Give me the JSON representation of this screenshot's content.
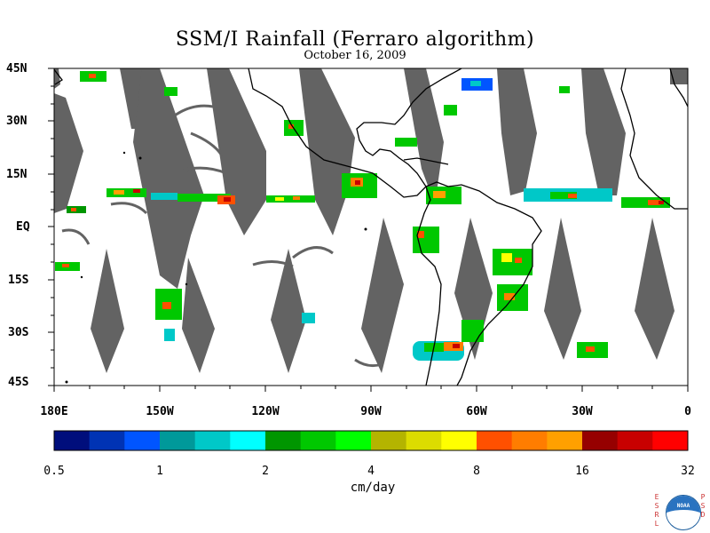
{
  "title": "SSM/I Rainfall (Ferraro algorithm)",
  "date": "October 16, 2009",
  "lat_labels": [
    "45N",
    "30N",
    "15N",
    "EQ",
    "15S",
    "30S",
    "45S"
  ],
  "lon_labels": [
    "180E",
    "150W",
    "120W",
    "90W",
    "60W",
    "30W",
    "0"
  ],
  "colorbar": {
    "units": "cm/day",
    "tick_labels": [
      "0.5",
      "1",
      "2",
      "4",
      "8",
      "16",
      "32"
    ],
    "colors": [
      "#000e7c",
      "#0033b4",
      "#0055ff",
      "#00999a",
      "#00c8c8",
      "#00ffff",
      "#009600",
      "#00c800",
      "#00ff00",
      "#b4b400",
      "#dcdc00",
      "#ffff00",
      "#ff5000",
      "#ff7d00",
      "#ffa000",
      "#960000",
      "#c80000",
      "#ff0000"
    ]
  },
  "map_colors": {
    "land_outline": "#000000",
    "no_data_swath": "#636363",
    "ocean": "#ffffff"
  },
  "logo": {
    "left_letters": "ESRL",
    "right_letters": "PSD",
    "badge_text": "NOAA"
  }
}
